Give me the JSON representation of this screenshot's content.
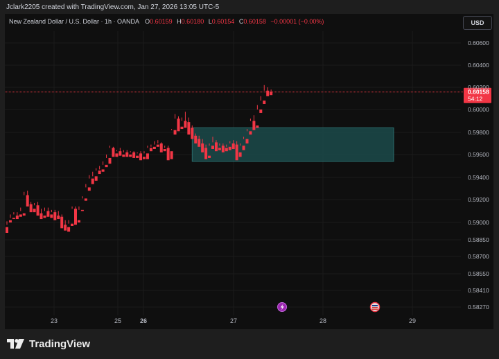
{
  "header": {
    "attribution": "Jclark2205 created with TradingView.com, Jan 27, 2026 13:05 UTC-5"
  },
  "legend": {
    "symbol": "New Zealand Dollar / U.S. Dollar · 1h · OANDA",
    "o_label": "O",
    "o_value": "0.60159",
    "h_label": "H",
    "h_value": "0.60180",
    "l_label": "L",
    "l_value": "0.60154",
    "c_label": "C",
    "c_value": "0.60158",
    "change": "−0.00001 (−0.00%)"
  },
  "currency_button": "USD",
  "price_label": {
    "price": "0.60158",
    "countdown": "54:12"
  },
  "footer": {
    "brand": "TradingView"
  },
  "colors": {
    "up": "#26a69a",
    "down": "#f23645",
    "zone_fill": "#1b4a4a",
    "zone_border": "#2a6c6c",
    "price_line": "#f23645"
  },
  "chart_data": {
    "type": "candlestick",
    "symbol": "New Zealand Dollar / U.S. Dollar",
    "interval": "1h",
    "y_ticks": [
      "0.60600",
      "0.60400",
      "0.60200",
      "0.60000",
      "0.59800",
      "0.59600",
      "0.59400",
      "0.59200",
      "0.59000",
      "0.58850",
      "0.58700",
      "0.58550",
      "0.58410",
      "0.58270"
    ],
    "x_ticks": [
      "23",
      "25",
      "26",
      "27",
      "28",
      "29"
    ],
    "last_price": 0.60158,
    "zone": {
      "x_start": 54,
      "x_end": 112,
      "y_top": 0.5984,
      "y_bottom": 0.5954
    },
    "candles": [
      [
        0.5896,
        0.5901,
        0.5898,
        0.5891
      ],
      [
        0.5902,
        0.5907,
        0.5904,
        0.59
      ],
      [
        0.5904,
        0.5909,
        0.5907,
        0.5903
      ],
      [
        0.5906,
        0.5909,
        0.5906,
        0.5903
      ],
      [
        0.5907,
        0.5913,
        0.591,
        0.5905
      ],
      [
        0.5908,
        0.5927,
        0.5924,
        0.5906
      ],
      [
        0.5924,
        0.5928,
        0.5916,
        0.5914
      ],
      [
        0.5916,
        0.5918,
        0.5912,
        0.5909
      ],
      [
        0.5912,
        0.5917,
        0.5915,
        0.5909
      ],
      [
        0.5915,
        0.5918,
        0.5908,
        0.5906
      ],
      [
        0.5908,
        0.5912,
        0.5906,
        0.5903
      ],
      [
        0.5906,
        0.5913,
        0.591,
        0.5904
      ],
      [
        0.591,
        0.5913,
        0.5907,
        0.5905
      ],
      [
        0.5907,
        0.5911,
        0.5909,
        0.5904
      ],
      [
        0.5909,
        0.5911,
        0.5906,
        0.5902
      ],
      [
        0.5906,
        0.591,
        0.5905,
        0.5903
      ],
      [
        0.5905,
        0.5907,
        0.5898,
        0.5895
      ],
      [
        0.5898,
        0.5902,
        0.5896,
        0.5893
      ],
      [
        0.5896,
        0.5902,
        0.5899,
        0.5892
      ],
      [
        0.5899,
        0.5914,
        0.5912,
        0.5897
      ],
      [
        0.5912,
        0.5914,
        0.5902,
        0.5898
      ],
      [
        0.5902,
        0.5914,
        0.5911,
        0.59
      ],
      [
        0.5911,
        0.5923,
        0.5921,
        0.591
      ],
      [
        0.5921,
        0.5934,
        0.5931,
        0.5919
      ],
      [
        0.5931,
        0.5942,
        0.5939,
        0.5928
      ],
      [
        0.5939,
        0.5945,
        0.5941,
        0.5934
      ],
      [
        0.5941,
        0.5948,
        0.5946,
        0.5937
      ],
      [
        0.5946,
        0.595,
        0.5947,
        0.5943
      ],
      [
        0.5947,
        0.5954,
        0.5951,
        0.5945
      ],
      [
        0.5951,
        0.596,
        0.5957,
        0.5949
      ],
      [
        0.5957,
        0.5968,
        0.5966,
        0.5952
      ],
      [
        0.5966,
        0.5967,
        0.5961,
        0.5958
      ],
      [
        0.5961,
        0.5964,
        0.5963,
        0.5958
      ],
      [
        0.5963,
        0.5966,
        0.596,
        0.5959
      ],
      [
        0.596,
        0.5964,
        0.5962,
        0.5958
      ],
      [
        0.5962,
        0.5964,
        0.596,
        0.5958
      ],
      [
        0.596,
        0.5963,
        0.5962,
        0.5958
      ],
      [
        0.5962,
        0.5963,
        0.5959,
        0.5957
      ],
      [
        0.5959,
        0.5962,
        0.5961,
        0.5957
      ],
      [
        0.5961,
        0.5963,
        0.5958,
        0.5955
      ],
      [
        0.5958,
        0.5963,
        0.5961,
        0.5956
      ],
      [
        0.5961,
        0.5968,
        0.5966,
        0.5956
      ],
      [
        0.5966,
        0.5969,
        0.5967,
        0.5963
      ],
      [
        0.5967,
        0.5972,
        0.5969,
        0.5965
      ],
      [
        0.5969,
        0.5973,
        0.597,
        0.5967
      ],
      [
        0.597,
        0.5971,
        0.5965,
        0.5962
      ],
      [
        0.5965,
        0.5968,
        0.5966,
        0.5963
      ],
      [
        0.5966,
        0.5968,
        0.5963,
        0.5955
      ],
      [
        0.5963,
        0.5983,
        0.5982,
        0.5956
      ],
      [
        0.5982,
        0.5996,
        0.5992,
        0.5978
      ],
      [
        0.5992,
        0.5994,
        0.5985,
        0.5981
      ],
      [
        0.5985,
        0.5993,
        0.599,
        0.5983
      ],
      [
        0.599,
        0.5998,
        0.5989,
        0.5984
      ],
      [
        0.5989,
        0.5993,
        0.5984,
        0.5978
      ],
      [
        0.5984,
        0.5986,
        0.5977,
        0.5974
      ],
      [
        0.5977,
        0.5979,
        0.5974,
        0.597
      ],
      [
        0.5974,
        0.5977,
        0.597,
        0.5967
      ],
      [
        0.597,
        0.5974,
        0.5966,
        0.5962
      ],
      [
        0.5966,
        0.5969,
        0.5959,
        0.5956
      ],
      [
        0.5959,
        0.597,
        0.5968,
        0.5957
      ],
      [
        0.5968,
        0.5976,
        0.5971,
        0.5965
      ],
      [
        0.5971,
        0.5973,
        0.5966,
        0.5963
      ],
      [
        0.5966,
        0.597,
        0.5968,
        0.5964
      ],
      [
        0.5968,
        0.597,
        0.5966,
        0.5962
      ],
      [
        0.5966,
        0.5969,
        0.5967,
        0.5963
      ],
      [
        0.5967,
        0.5972,
        0.597,
        0.5964
      ],
      [
        0.597,
        0.5973,
        0.5969,
        0.5965
      ],
      [
        0.5969,
        0.5972,
        0.5962,
        0.5955
      ],
      [
        0.5962,
        0.597,
        0.5968,
        0.5958
      ],
      [
        0.5968,
        0.5976,
        0.5974,
        0.5964
      ],
      [
        0.5974,
        0.5983,
        0.5981,
        0.597
      ],
      [
        0.5981,
        0.5992,
        0.599,
        0.5978
      ],
      [
        0.599,
        0.5995,
        0.5986,
        0.5982
      ],
      [
        0.5986,
        0.6004,
        0.6,
        0.5984
      ],
      [
        0.6,
        0.6012,
        0.6008,
        0.5997
      ],
      [
        0.6008,
        0.6022,
        0.6017,
        0.6005
      ],
      [
        0.6017,
        0.602,
        0.6016,
        0.6012
      ],
      [
        0.6016,
        0.6018,
        0.6015,
        0.6013
      ]
    ]
  }
}
